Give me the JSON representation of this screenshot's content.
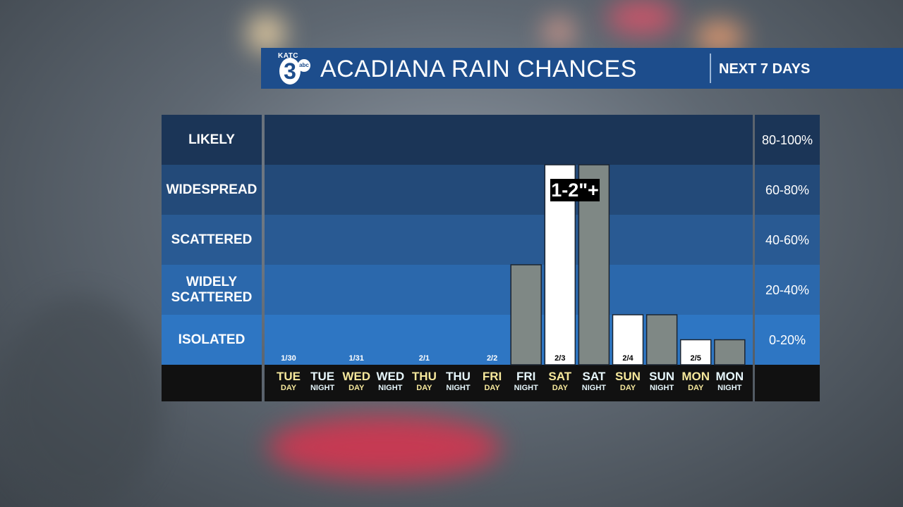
{
  "header": {
    "logo_station": "KATC",
    "logo_number": "3",
    "logo_network": "abc",
    "title": "ACADIANA RAIN CHANCES",
    "subtitle": "NEXT 7 DAYS"
  },
  "colors": {
    "header_bg": "#1d4d8c",
    "band_1": "#2e76c3",
    "band_2": "#2b68ac",
    "band_3": "#295a93",
    "band_4": "#234a79",
    "band_5": "#1b3557",
    "day_bar": "#ffffff",
    "night_bar": "#7f8885",
    "day_text": "#f6e89c",
    "night_text": "#e6f6fb"
  },
  "chart_data": {
    "type": "bar",
    "bands": [
      {
        "label": "LIKELY",
        "range": "80-100%",
        "min": 80,
        "max": 100
      },
      {
        "label": "WIDESPREAD",
        "range": "60-80%",
        "min": 60,
        "max": 80
      },
      {
        "label": "SCATTERED",
        "range": "40-60%",
        "min": 40,
        "max": 60
      },
      {
        "label": "WIDELY\nSCATTERED",
        "range": "20-40%",
        "min": 20,
        "max": 40
      },
      {
        "label": "ISOLATED",
        "range": "0-20%",
        "min": 0,
        "max": 20
      }
    ],
    "ylim": [
      0,
      100
    ],
    "periods": [
      {
        "day": "TUE",
        "part": "DAY",
        "date": "1/30",
        "value": 0
      },
      {
        "day": "TUE",
        "part": "NIGHT",
        "date": "",
        "value": 0
      },
      {
        "day": "WED",
        "part": "DAY",
        "date": "1/31",
        "value": 0
      },
      {
        "day": "WED",
        "part": "NIGHT",
        "date": "",
        "value": 0
      },
      {
        "day": "THU",
        "part": "DAY",
        "date": "2/1",
        "value": 0
      },
      {
        "day": "THU",
        "part": "NIGHT",
        "date": "",
        "value": 0
      },
      {
        "day": "FRI",
        "part": "DAY",
        "date": "2/2",
        "value": 0
      },
      {
        "day": "FRI",
        "part": "NIGHT",
        "date": "",
        "value": 40
      },
      {
        "day": "SAT",
        "part": "DAY",
        "date": "2/3",
        "value": 80
      },
      {
        "day": "SAT",
        "part": "NIGHT",
        "date": "",
        "value": 80
      },
      {
        "day": "SUN",
        "part": "DAY",
        "date": "2/4",
        "value": 20
      },
      {
        "day": "SUN",
        "part": "NIGHT",
        "date": "",
        "value": 20
      },
      {
        "day": "MON",
        "part": "DAY",
        "date": "2/5",
        "value": 10
      },
      {
        "day": "MON",
        "part": "NIGHT",
        "date": "",
        "value": 10
      }
    ],
    "annotation": "1-2\"+"
  }
}
